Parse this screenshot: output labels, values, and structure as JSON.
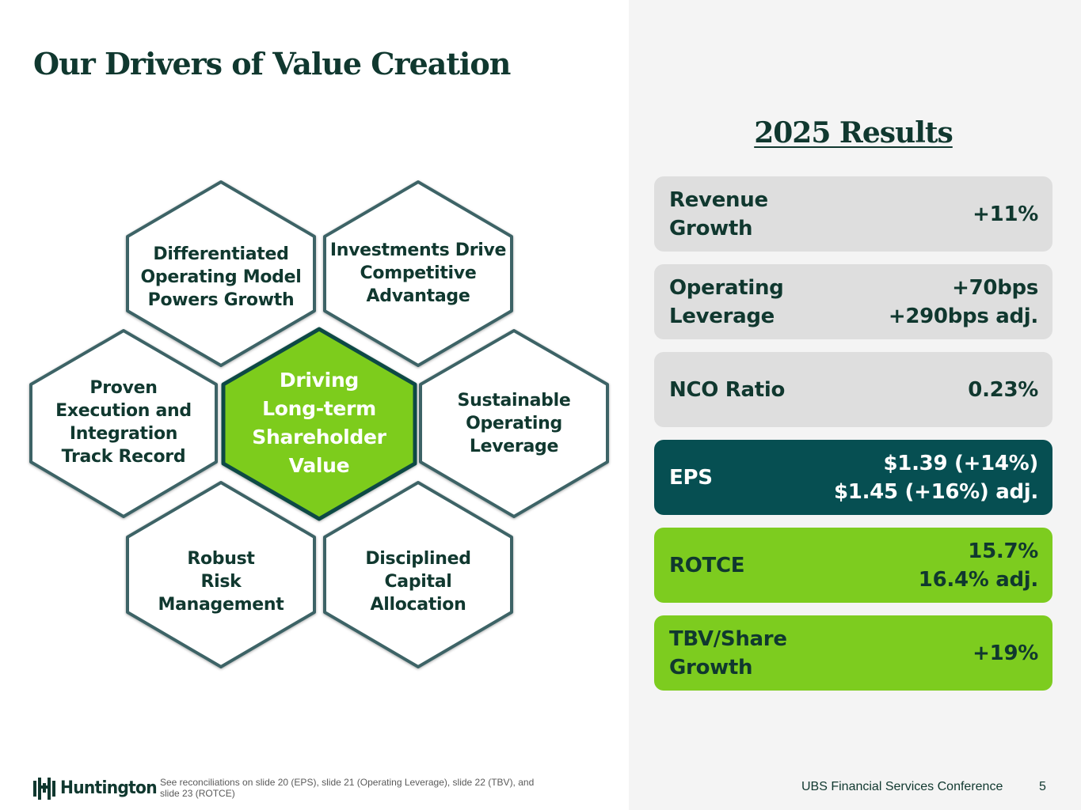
{
  "title": "Our Drivers of Value Creation",
  "hexagons": {
    "top_left": "Differentiated\nOperating Model\nPowers Growth",
    "top_right": "Investments Drive\nCompetitive\nAdvantage",
    "mid_left": "Proven\nExecution and\nIntegration\nTrack Record",
    "center": "Driving\nLong-term\nShareholder\nValue",
    "mid_right": "Sustainable\nOperating\nLeverage",
    "bottom_left": "Robust\nRisk\nManagement",
    "bottom_right": "Disciplined\nCapital\nAllocation"
  },
  "results": {
    "title": "2025 Results",
    "cards": [
      {
        "label": "Revenue\nGrowth",
        "value": "+11%",
        "style": "gray"
      },
      {
        "label": "Operating\nLeverage",
        "value": "+70bps\n+290bps adj.",
        "style": "gray"
      },
      {
        "label": "NCO Ratio",
        "value": "0.23%",
        "style": "gray"
      },
      {
        "label": "EPS",
        "value": "$1.39 (+14%)\n$1.45 (+16%) adj.",
        "style": "teal"
      },
      {
        "label": "ROTCE",
        "value": "15.7%\n16.4% adj.",
        "style": "green"
      },
      {
        "label": "TBV/Share\nGrowth",
        "value": "+19%",
        "style": "green"
      }
    ]
  },
  "footer": {
    "logo": "Huntington",
    "note": "See reconciliations on slide 20 (EPS), slide 21 (Operating Leverage), slide 22 (TBV), and slide 23 (ROTCE)",
    "conference": "UBS Financial Services Conference",
    "page": "5"
  },
  "colors": {
    "dark_green": "#10382f",
    "teal": "#064f52",
    "lime": "#7dcc1f",
    "hex_border": "#3d6466",
    "card_gray": "#dedede",
    "panel_gray": "#f4f4f4"
  }
}
